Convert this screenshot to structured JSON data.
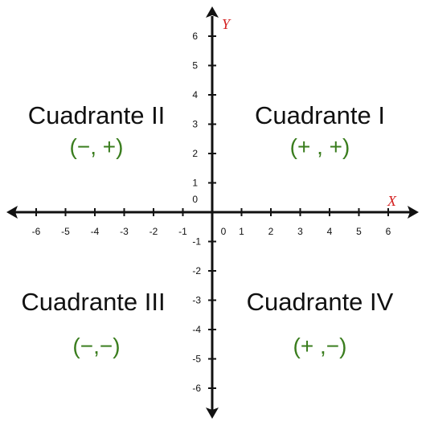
{
  "colors": {
    "axis": "#111111",
    "axis_label": "#d42020",
    "sign": "#3a7d1e",
    "quadrant_name": "#111111"
  },
  "axes": {
    "x_label": "X",
    "y_label": "Y",
    "x_ticks": [
      "-6",
      "-5",
      "-4",
      "-3",
      "-2",
      "-1",
      "0",
      "1",
      "2",
      "3",
      "4",
      "5",
      "6"
    ],
    "y_ticks_positive": [
      "6",
      "5",
      "4",
      "3",
      "2",
      "1",
      "0"
    ],
    "y_ticks_negative": [
      "-1",
      "-2",
      "-3",
      "-4",
      "-5",
      "-6"
    ],
    "range": [
      -6,
      6
    ]
  },
  "quadrants": [
    {
      "id": "I",
      "name": "Cuadrante I",
      "signs": "(+ , +)"
    },
    {
      "id": "II",
      "name": "Cuadrante II",
      "signs": "(−, +)"
    },
    {
      "id": "III",
      "name": "Cuadrante III",
      "signs": "(−,−)"
    },
    {
      "id": "IV",
      "name": "Cuadrante IV",
      "signs": "(+ ,−)"
    }
  ]
}
